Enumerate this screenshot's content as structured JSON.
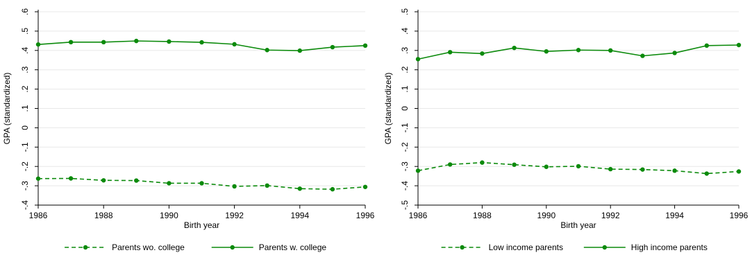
{
  "colors": {
    "series": "#0b8a0b",
    "grid": "#e8e8e8",
    "axis": "#000000"
  },
  "chart_data": [
    {
      "type": "line",
      "ylabel": "GPA (standardized)",
      "xlabel": "Birth year",
      "xlim": [
        1986,
        1996
      ],
      "ylim": [
        -0.4,
        0.6
      ],
      "xticks": [
        1986,
        1988,
        1990,
        1992,
        1994,
        1996
      ],
      "xtick_labels": [
        "1986",
        "1988",
        "1990",
        "1992",
        "1994",
        "1996"
      ],
      "yticks": [
        -0.4,
        -0.3,
        -0.2,
        -0.1,
        0,
        0.1,
        0.2,
        0.3,
        0.4,
        0.5,
        0.6
      ],
      "ytick_labels": [
        "-.4",
        "-.3",
        "-.2",
        "-.1",
        "0",
        ".1",
        ".2",
        ".3",
        ".4",
        ".5",
        ".6"
      ],
      "grid": true,
      "legend_position": "bottom",
      "x": [
        1986,
        1987,
        1988,
        1989,
        1990,
        1991,
        1992,
        1993,
        1994,
        1995,
        1996
      ],
      "series": [
        {
          "name": "Parents wo. college",
          "dash": "dashed",
          "values": [
            -0.263,
            -0.262,
            -0.272,
            -0.273,
            -0.287,
            -0.287,
            -0.303,
            -0.299,
            -0.315,
            -0.318,
            -0.306
          ]
        },
        {
          "name": "Parents w. college",
          "dash": "solid",
          "values": [
            0.431,
            0.443,
            0.443,
            0.449,
            0.446,
            0.442,
            0.432,
            0.402,
            0.399,
            0.417,
            0.425
          ]
        }
      ]
    },
    {
      "type": "line",
      "ylabel": "GPA (standardized)",
      "xlabel": "Birth year",
      "xlim": [
        1986,
        1996
      ],
      "ylim": [
        -0.5,
        0.5
      ],
      "xticks": [
        1986,
        1988,
        1990,
        1992,
        1994,
        1996
      ],
      "xtick_labels": [
        "1986",
        "1988",
        "1990",
        "1992",
        "1994",
        "1996"
      ],
      "yticks": [
        -0.5,
        -0.4,
        -0.3,
        -0.2,
        -0.1,
        0,
        0.1,
        0.2,
        0.3,
        0.4,
        0.5
      ],
      "ytick_labels": [
        "-.5",
        "-.4",
        "-.3",
        "-.2",
        "-.1",
        "0",
        ".1",
        ".2",
        ".3",
        ".4",
        ".5"
      ],
      "grid": true,
      "legend_position": "bottom",
      "x": [
        1986,
        1987,
        1988,
        1989,
        1990,
        1991,
        1992,
        1993,
        1994,
        1995,
        1996
      ],
      "series": [
        {
          "name": "Low income parents",
          "dash": "dashed",
          "values": [
            -0.322,
            -0.29,
            -0.28,
            -0.291,
            -0.302,
            -0.299,
            -0.314,
            -0.316,
            -0.322,
            -0.337,
            -0.326
          ]
        },
        {
          "name": "High income parents",
          "dash": "solid",
          "values": [
            0.255,
            0.291,
            0.284,
            0.313,
            0.295,
            0.302,
            0.3,
            0.272,
            0.287,
            0.325,
            0.328
          ]
        }
      ]
    }
  ]
}
